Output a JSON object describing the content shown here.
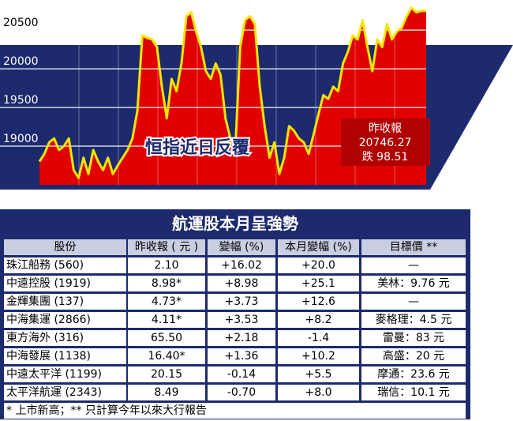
{
  "chart_data": {
    "type": "area",
    "title": "恒指近日反覆",
    "values": [
      18800,
      18900,
      19050,
      19100,
      18950,
      19000,
      19100,
      18690,
      18590,
      18850,
      18640,
      18950,
      18800,
      18690,
      18850,
      18640,
      18750,
      18850,
      18950,
      19100,
      19460,
      20430,
      20400,
      20380,
      20280,
      19770,
      19360,
      19870,
      19710,
      20070,
      20680,
      20730,
      20480,
      20280,
      19970,
      19870,
      20070,
      19920,
      19360,
      19100,
      18950,
      20280,
      20630,
      20680,
      20580,
      19770,
      19260,
      18850,
      19050,
      18640,
      18850,
      19260,
      19200,
      19100,
      19050,
      18900,
      19150,
      19410,
      19660,
      19610,
      19770,
      19710,
      20070,
      20220,
      20430,
      20380,
      20630,
      20280,
      19970,
      20380,
      20280,
      20580,
      20380,
      20480,
      20530,
      20680,
      20790,
      20730,
      20750,
      20750
    ],
    "color": "#e00000",
    "line_color": "#f2e600",
    "ylim": [
      18500,
      20890
    ],
    "yticks": [
      19000,
      19500,
      20000,
      20500
    ],
    "grid": true,
    "annotation": [
      "昨收報",
      "20746.27",
      "跌 98.51"
    ]
  },
  "table": {
    "title": "航運股本月呈強勢",
    "header": [
      "股份",
      "昨收報 ( 元 )",
      "變幅 (%)",
      "本月變幅 (%)",
      "目標價 **"
    ],
    "rows": [
      [
        "珠江船務 (560)",
        "2.10",
        "+16.02",
        "+20.0",
        "—"
      ],
      [
        "中遠控股 (1919)",
        "8.98*",
        "+8.98",
        "+25.1",
        "美林：9.76 元"
      ],
      [
        "金輝集團 (137)",
        "4.73*",
        "+3.73",
        "+12.6",
        "—"
      ],
      [
        "中海集運 (2866)",
        "4.11*",
        "+3.53",
        "+8.2",
        "麥格理：4.5 元"
      ],
      [
        "東方海外 (316)",
        "65.50",
        "+2.18",
        "-1.4",
        "雷曼：83 元"
      ],
      [
        "中海發展 (1138)",
        "16.40*",
        "+1.36",
        "+10.2",
        "高盛：20 元"
      ],
      [
        "中遠太平洋 (1199)",
        "20.15",
        "-0.14",
        "+5.5",
        "摩通：23.6 元"
      ],
      [
        "太平洋航運 (2343)",
        "8.49",
        "-0.70",
        "+8.0",
        "瑞信：10.1 元"
      ]
    ],
    "footnote": "* 上市新高；** 只計算今年以來大行報告"
  }
}
